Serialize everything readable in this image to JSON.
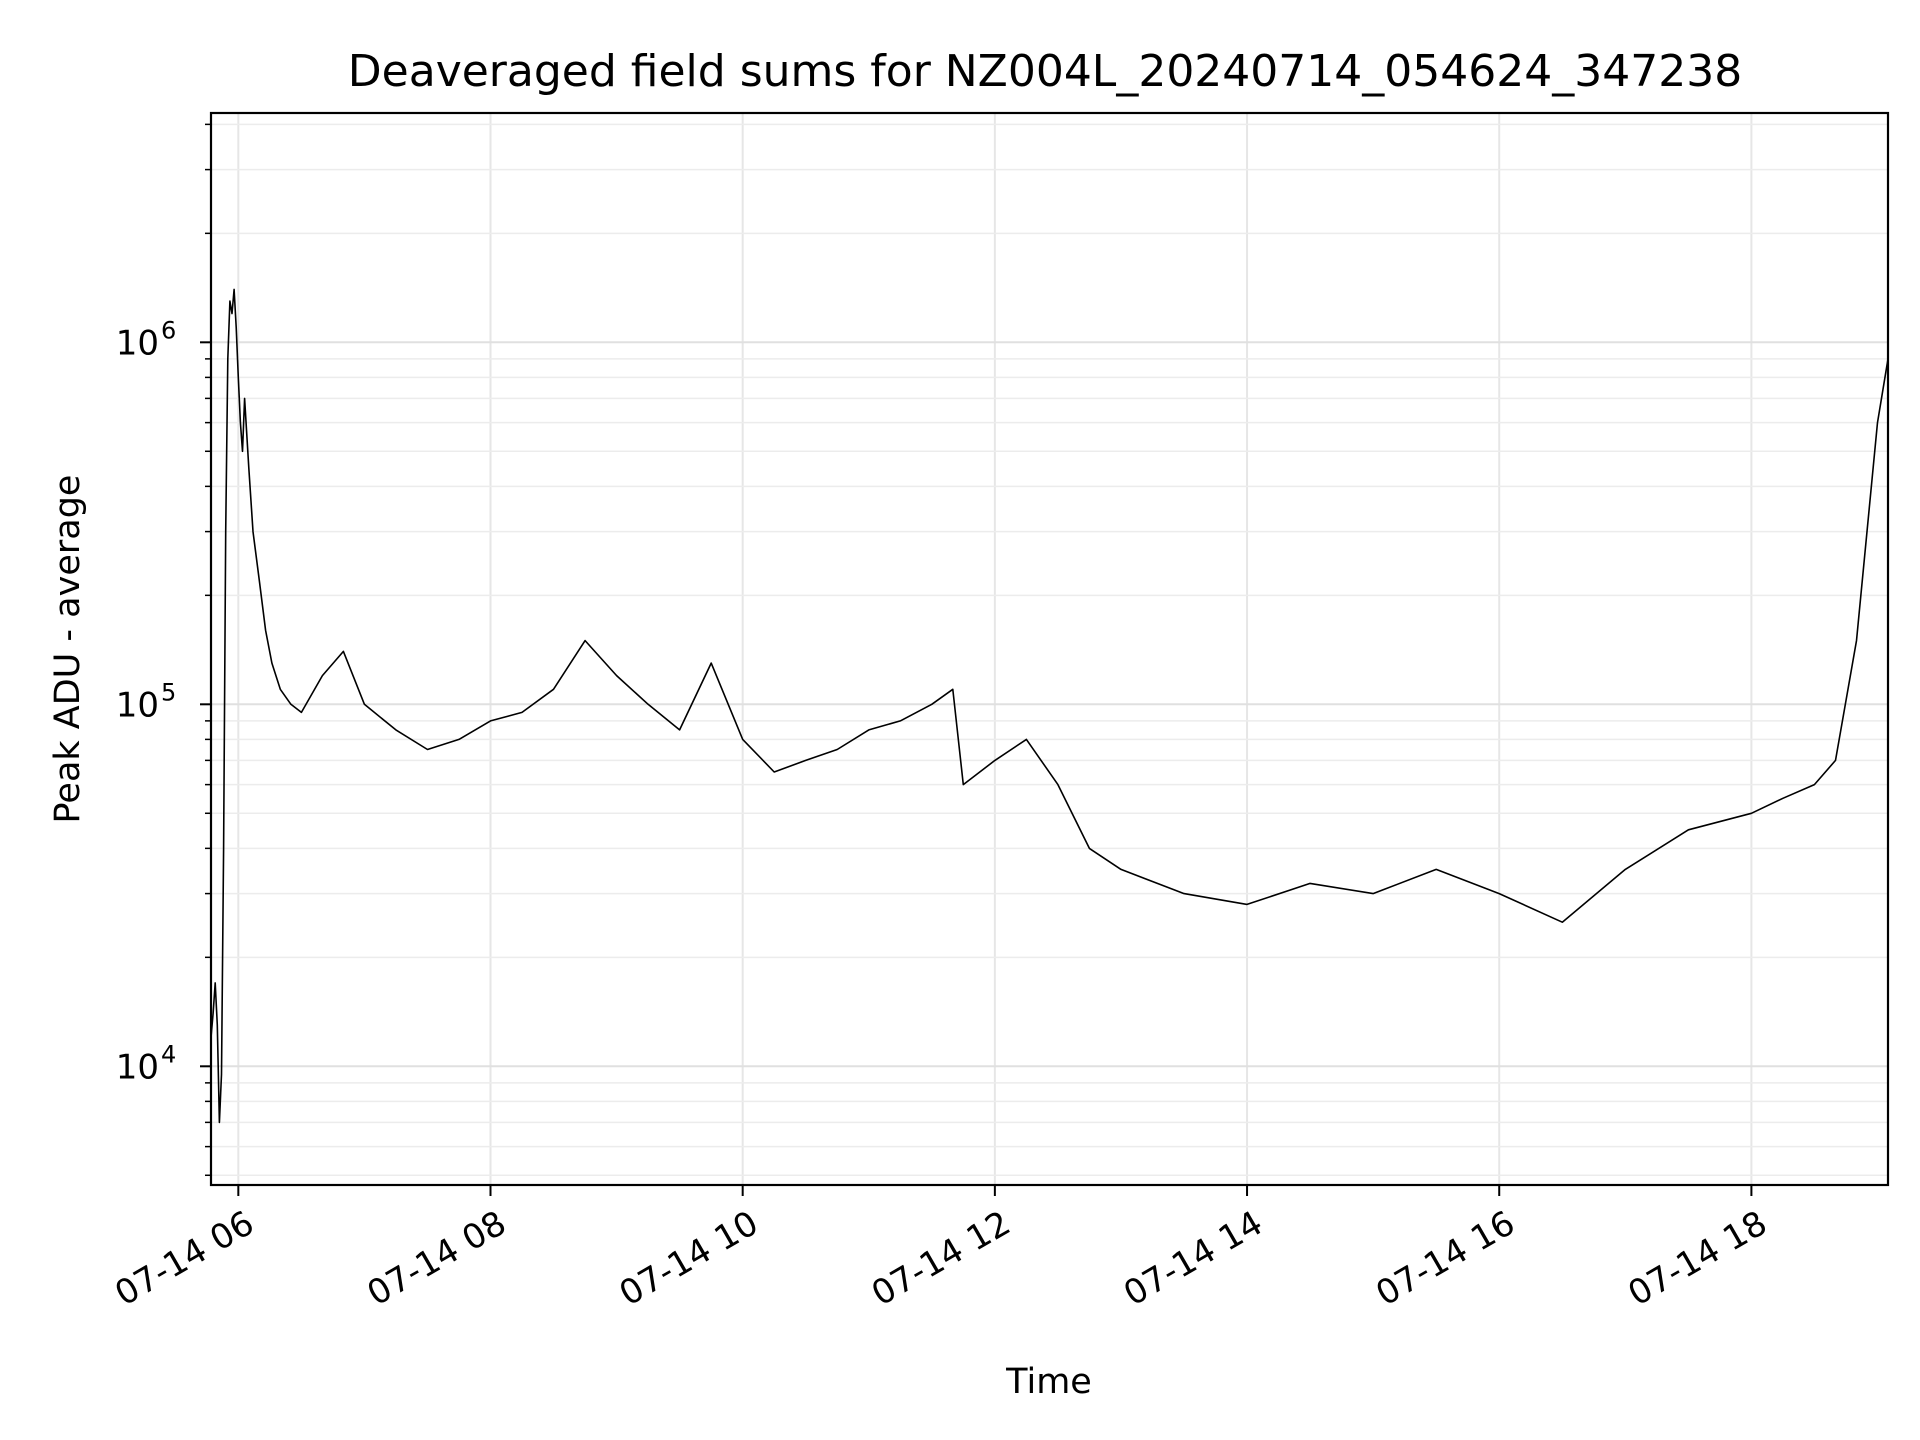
{
  "chart_data": {
    "type": "line",
    "title": "Deaveraged field sums for NZ004L_20240714_054624_347238",
    "xlabel": "Time",
    "ylabel": "Peak ADU - average",
    "y_scale": "log",
    "grid": true,
    "legend": "none",
    "line_color": "#000000",
    "xlim": [
      "2024-07-14 05:47",
      "2024-07-14 19:05"
    ],
    "ylim": [
      4700,
      4300000
    ],
    "x_ticks": [
      {
        "value": "2024-07-14 06:00",
        "label": "07-14 06"
      },
      {
        "value": "2024-07-14 08:00",
        "label": "07-14 08"
      },
      {
        "value": "2024-07-14 10:00",
        "label": "07-14 10"
      },
      {
        "value": "2024-07-14 12:00",
        "label": "07-14 12"
      },
      {
        "value": "2024-07-14 14:00",
        "label": "07-14 14"
      },
      {
        "value": "2024-07-14 16:00",
        "label": "07-14 16"
      },
      {
        "value": "2024-07-14 18:00",
        "label": "07-14 18"
      }
    ],
    "y_ticks": [
      {
        "value": 10000,
        "base": "10",
        "exp": "4"
      },
      {
        "value": 100000,
        "base": "10",
        "exp": "5"
      },
      {
        "value": 1000000,
        "base": "10",
        "exp": "6"
      }
    ],
    "series": [
      {
        "x": [
          "2024-07-14 05:47",
          "2024-07-14 05:48",
          "2024-07-14 05:49",
          "2024-07-14 05:50",
          "2024-07-14 05:51",
          "2024-07-14 05:52",
          "2024-07-14 05:53",
          "2024-07-14 05:54",
          "2024-07-14 05:55",
          "2024-07-14 05:56",
          "2024-07-14 05:57",
          "2024-07-14 05:58",
          "2024-07-14 05:59",
          "2024-07-14 06:00",
          "2024-07-14 06:01",
          "2024-07-14 06:02",
          "2024-07-14 06:03",
          "2024-07-14 06:05",
          "2024-07-14 06:07",
          "2024-07-14 06:10",
          "2024-07-14 06:13",
          "2024-07-14 06:16",
          "2024-07-14 06:20",
          "2024-07-14 06:25",
          "2024-07-14 06:30",
          "2024-07-14 06:40",
          "2024-07-14 06:50",
          "2024-07-14 07:00",
          "2024-07-14 07:15",
          "2024-07-14 07:30",
          "2024-07-14 07:45",
          "2024-07-14 08:00",
          "2024-07-14 08:15",
          "2024-07-14 08:30",
          "2024-07-14 08:45",
          "2024-07-14 09:00",
          "2024-07-14 09:15",
          "2024-07-14 09:30",
          "2024-07-14 09:45",
          "2024-07-14 10:00",
          "2024-07-14 10:15",
          "2024-07-14 10:30",
          "2024-07-14 10:45",
          "2024-07-14 11:00",
          "2024-07-14 11:15",
          "2024-07-14 11:30",
          "2024-07-14 11:40",
          "2024-07-14 11:45",
          "2024-07-14 12:00",
          "2024-07-14 12:15",
          "2024-07-14 12:30",
          "2024-07-14 12:45",
          "2024-07-14 13:00",
          "2024-07-14 13:30",
          "2024-07-14 14:00",
          "2024-07-14 14:30",
          "2024-07-14 15:00",
          "2024-07-14 15:30",
          "2024-07-14 16:00",
          "2024-07-14 16:30",
          "2024-07-14 17:00",
          "2024-07-14 17:30",
          "2024-07-14 18:00",
          "2024-07-14 18:15",
          "2024-07-14 18:30",
          "2024-07-14 18:40",
          "2024-07-14 18:50",
          "2024-07-14 19:00",
          "2024-07-14 19:05"
        ],
        "y": [
          12000,
          14000,
          17000,
          13000,
          7000,
          9500,
          40000,
          300000,
          900000,
          1300000,
          1200000,
          1400000,
          1100000,
          800000,
          600000,
          500000,
          700000,
          450000,
          300000,
          220000,
          160000,
          130000,
          110000,
          100000,
          95000,
          120000,
          140000,
          100000,
          85000,
          75000,
          80000,
          90000,
          95000,
          110000,
          150000,
          120000,
          100000,
          85000,
          130000,
          80000,
          65000,
          70000,
          75000,
          85000,
          90000,
          100000,
          110000,
          60000,
          70000,
          80000,
          60000,
          40000,
          35000,
          30000,
          28000,
          32000,
          30000,
          35000,
          30000,
          25000,
          35000,
          45000,
          50000,
          55000,
          60000,
          70000,
          150000,
          600000,
          900000
        ]
      }
    ]
  }
}
